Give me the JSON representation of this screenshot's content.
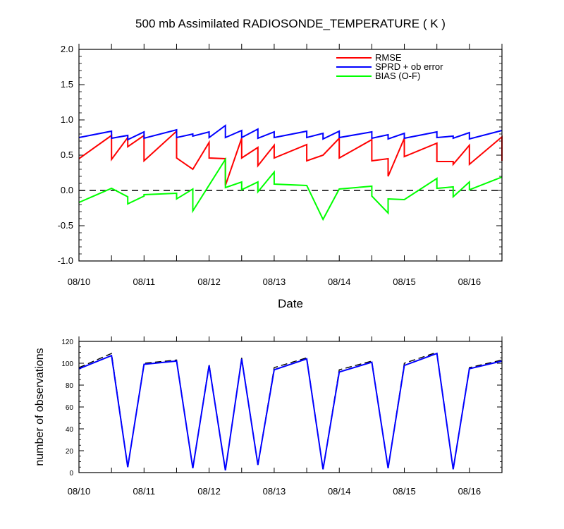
{
  "chart_data": [
    {
      "type": "line",
      "title": "500 mb Assimilated RADIOSONDE_TEMPERATURE ( K )",
      "xlabel": "Date",
      "ylabel": "",
      "xlim": [
        "08/10 00:00",
        "08/16 12:00"
      ],
      "ylim": [
        -1.0,
        2.0
      ],
      "y_ticks": [
        "2.0",
        "1.5",
        "1.0",
        "0.5",
        "0.0",
        "-0.5",
        "-1.0"
      ],
      "x_ticks": [
        "08/10",
        "08/11",
        "08/12",
        "08/13",
        "08/14",
        "08/15",
        "08/16"
      ],
      "legend_position": "top-right",
      "reference_line": {
        "y": 0.0,
        "style": "dashed"
      },
      "series": [
        {
          "name": "RMSE",
          "color": "#ff0000",
          "points": [
            [
              "08/10 00:00",
              0.45
            ],
            [
              "08/10 12:00",
              0.78
            ],
            [
              "08/10 12:00",
              0.44
            ],
            [
              "08/10 18:00",
              0.75
            ],
            [
              "08/10 18:00",
              0.62
            ],
            [
              "08/11 00:00",
              0.78
            ],
            [
              "08/11 00:00",
              0.42
            ],
            [
              "08/11 12:00",
              0.84
            ],
            [
              "08/11 12:00",
              0.46
            ],
            [
              "08/11 18:00",
              0.3
            ],
            [
              "08/12 00:00",
              0.68
            ],
            [
              "08/12 00:00",
              0.46
            ],
            [
              "08/12 06:00",
              0.45
            ],
            [
              "08/12 06:00",
              0.07
            ],
            [
              "08/12 12:00",
              0.74
            ],
            [
              "08/12 12:00",
              0.46
            ],
            [
              "08/12 18:00",
              0.61
            ],
            [
              "08/12 18:00",
              0.35
            ],
            [
              "08/13 00:00",
              0.64
            ],
            [
              "08/13 00:00",
              0.46
            ],
            [
              "08/13 12:00",
              0.65
            ],
            [
              "08/13 12:00",
              0.42
            ],
            [
              "08/13 18:00",
              0.5
            ],
            [
              "08/14 00:00",
              0.74
            ],
            [
              "08/14 00:00",
              0.46
            ],
            [
              "08/14 12:00",
              0.72
            ],
            [
              "08/14 12:00",
              0.42
            ],
            [
              "08/14 18:00",
              0.45
            ],
            [
              "08/14 18:00",
              0.2
            ],
            [
              "08/15 00:00",
              0.74
            ],
            [
              "08/15 00:00",
              0.48
            ],
            [
              "08/15 12:00",
              0.67
            ],
            [
              "08/15 12:00",
              0.41
            ],
            [
              "08/15 18:00",
              0.41
            ],
            [
              "08/15 18:00",
              0.37
            ],
            [
              "08/16 00:00",
              0.64
            ],
            [
              "08/16 00:00",
              0.37
            ],
            [
              "08/16 12:00",
              0.76
            ],
            [
              "08/16 12:00",
              0.42
            ]
          ]
        },
        {
          "name": "SPRD + ob error",
          "color": "#0000ff",
          "points": [
            [
              "08/10 00:00",
              0.75
            ],
            [
              "08/10 12:00",
              0.84
            ],
            [
              "08/10 12:00",
              0.74
            ],
            [
              "08/10 18:00",
              0.78
            ],
            [
              "08/10 18:00",
              0.72
            ],
            [
              "08/11 00:00",
              0.83
            ],
            [
              "08/11 00:00",
              0.74
            ],
            [
              "08/11 12:00",
              0.86
            ],
            [
              "08/11 12:00",
              0.75
            ],
            [
              "08/11 18:00",
              0.8
            ],
            [
              "08/11 18:00",
              0.77
            ],
            [
              "08/12 00:00",
              0.83
            ],
            [
              "08/12 00:00",
              0.75
            ],
            [
              "08/12 06:00",
              0.92
            ],
            [
              "08/12 06:00",
              0.75
            ],
            [
              "08/12 12:00",
              0.85
            ],
            [
              "08/12 12:00",
              0.75
            ],
            [
              "08/12 18:00",
              0.87
            ],
            [
              "08/12 18:00",
              0.74
            ],
            [
              "08/13 00:00",
              0.83
            ],
            [
              "08/13 00:00",
              0.75
            ],
            [
              "08/13 12:00",
              0.84
            ],
            [
              "08/13 12:00",
              0.75
            ],
            [
              "08/13 18:00",
              0.81
            ],
            [
              "08/13 18:00",
              0.73
            ],
            [
              "08/14 00:00",
              0.84
            ],
            [
              "08/14 00:00",
              0.75
            ],
            [
              "08/14 12:00",
              0.83
            ],
            [
              "08/14 12:00",
              0.74
            ],
            [
              "08/14 18:00",
              0.79
            ],
            [
              "08/14 18:00",
              0.73
            ],
            [
              "08/15 00:00",
              0.81
            ],
            [
              "08/15 00:00",
              0.74
            ],
            [
              "08/15 12:00",
              0.83
            ],
            [
              "08/15 12:00",
              0.75
            ],
            [
              "08/15 18:00",
              0.77
            ],
            [
              "08/15 18:00",
              0.74
            ],
            [
              "08/16 00:00",
              0.82
            ],
            [
              "08/16 00:00",
              0.73
            ],
            [
              "08/16 12:00",
              0.85
            ]
          ]
        },
        {
          "name": "BIAS (O-F)",
          "color": "#00ff00",
          "points": [
            [
              "08/10 00:00",
              -0.17
            ],
            [
              "08/10 12:00",
              0.03
            ],
            [
              "08/10 18:00",
              -0.09
            ],
            [
              "08/10 18:00",
              -0.19
            ],
            [
              "08/11 00:00",
              -0.08
            ],
            [
              "08/11 00:00",
              -0.06
            ],
            [
              "08/11 12:00",
              -0.04
            ],
            [
              "08/11 12:00",
              -0.12
            ],
            [
              "08/11 18:00",
              0.02
            ],
            [
              "08/11 18:00",
              -0.29
            ],
            [
              "08/12 06:00",
              0.44
            ],
            [
              "08/12 06:00",
              0.04
            ],
            [
              "08/12 12:00",
              0.12
            ],
            [
              "08/12 12:00",
              0.01
            ],
            [
              "08/12 18:00",
              0.12
            ],
            [
              "08/12 18:00",
              -0.02
            ],
            [
              "08/13 00:00",
              0.26
            ],
            [
              "08/13 00:00",
              0.09
            ],
            [
              "08/13 12:00",
              0.07
            ],
            [
              "08/13 18:00",
              -0.41
            ],
            [
              "08/14 00:00",
              0.02
            ],
            [
              "08/14 12:00",
              0.06
            ],
            [
              "08/14 12:00",
              -0.08
            ],
            [
              "08/14 18:00",
              -0.32
            ],
            [
              "08/14 18:00",
              -0.12
            ],
            [
              "08/15 00:00",
              -0.13
            ],
            [
              "08/15 12:00",
              0.17
            ],
            [
              "08/15 12:00",
              0.03
            ],
            [
              "08/15 18:00",
              0.05
            ],
            [
              "08/15 18:00",
              -0.09
            ],
            [
              "08/16 00:00",
              0.12
            ],
            [
              "08/16 00:00",
              0.01
            ],
            [
              "08/16 12:00",
              0.19
            ]
          ]
        }
      ]
    },
    {
      "type": "line",
      "title": "",
      "xlabel": "",
      "ylabel": "number of observations",
      "xlim": [
        "08/10 00:00",
        "08/16 12:00"
      ],
      "ylim": [
        0,
        120
      ],
      "y_ticks": [
        "120",
        "100",
        "80",
        "60",
        "40",
        "20",
        "0"
      ],
      "x_ticks": [
        "08/10",
        "08/11",
        "08/12",
        "08/13",
        "08/14",
        "08/15",
        "08/16"
      ],
      "series": [
        {
          "style": "dashed",
          "color": "#000000",
          "points": [
            [
              "08/10 00:00",
              96
            ],
            [
              "08/10 12:00",
              109
            ],
            [
              "08/10 18:00",
              5
            ],
            [
              "08/11 00:00",
              100
            ],
            [
              "08/11 12:00",
              103
            ],
            [
              "08/11 18:00",
              4
            ],
            [
              "08/12 00:00",
              99
            ],
            [
              "08/12 06:00",
              2
            ],
            [
              "08/12 12:00",
              105
            ],
            [
              "08/12 18:00",
              7
            ],
            [
              "08/13 00:00",
              96
            ],
            [
              "08/13 12:00",
              105
            ],
            [
              "08/13 18:00",
              3
            ],
            [
              "08/14 00:00",
              94
            ],
            [
              "08/14 12:00",
              102
            ],
            [
              "08/14 18:00",
              4
            ],
            [
              "08/15 00:00",
              100
            ],
            [
              "08/15 12:00",
              110
            ],
            [
              "08/15 18:00",
              3
            ],
            [
              "08/16 00:00",
              96
            ],
            [
              "08/16 12:00",
              103
            ]
          ]
        },
        {
          "style": "solid",
          "color": "#0000ff",
          "points": [
            [
              "08/10 00:00",
              95
            ],
            [
              "08/10 12:00",
              107
            ],
            [
              "08/10 18:00",
              5
            ],
            [
              "08/11 00:00",
              99
            ],
            [
              "08/11 12:00",
              102
            ],
            [
              "08/11 18:00",
              4
            ],
            [
              "08/12 00:00",
              98
            ],
            [
              "08/12 06:00",
              2
            ],
            [
              "08/12 12:00",
              104
            ],
            [
              "08/12 18:00",
              7
            ],
            [
              "08/13 00:00",
              94
            ],
            [
              "08/13 12:00",
              104
            ],
            [
              "08/13 18:00",
              3
            ],
            [
              "08/14 00:00",
              92
            ],
            [
              "08/14 12:00",
              101
            ],
            [
              "08/14 18:00",
              4
            ],
            [
              "08/15 00:00",
              98
            ],
            [
              "08/15 12:00",
              109
            ],
            [
              "08/15 18:00",
              3
            ],
            [
              "08/16 00:00",
              95
            ],
            [
              "08/16 12:00",
              102
            ]
          ]
        }
      ]
    }
  ]
}
